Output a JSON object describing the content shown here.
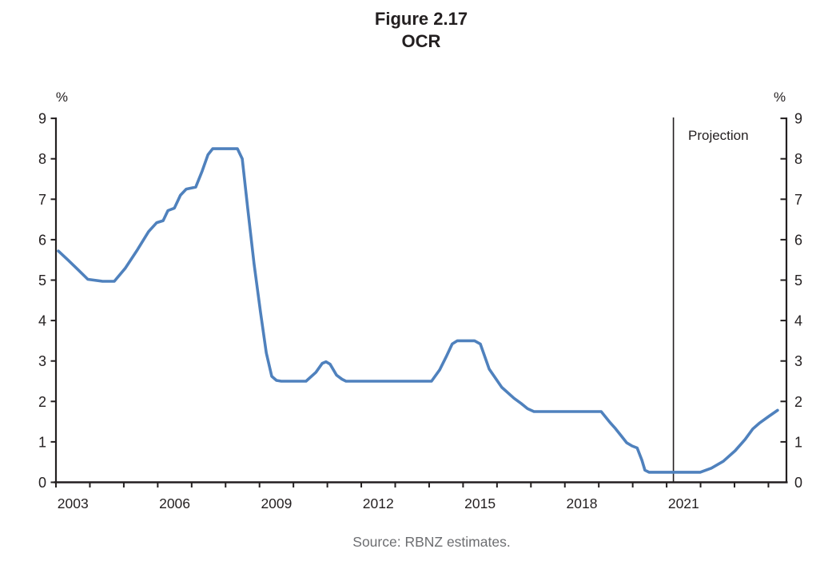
{
  "figure": {
    "title_line1": "Figure 2.17",
    "title_line2": "OCR",
    "unit_label_left": "%",
    "unit_label_right": "%",
    "projection_label": "Projection",
    "source": "Source: RBNZ estimates."
  },
  "chart_data": {
    "type": "line",
    "title": "Figure 2.17 OCR",
    "ylabel": "%",
    "ylim": [
      0,
      9
    ],
    "y_ticks": [
      0,
      1,
      2,
      3,
      4,
      5,
      6,
      7,
      8,
      9
    ],
    "x_start_year": 2003,
    "x_end_year": 2024.55,
    "x_minor_tick_years": [
      2003,
      2004,
      2005,
      2006,
      2007,
      2008,
      2009,
      2010,
      2011,
      2012,
      2013,
      2014,
      2015,
      2016,
      2017,
      2018,
      2019,
      2020,
      2021,
      2022,
      2023,
      2024
    ],
    "x_tick_label_years": [
      2003,
      2006,
      2009,
      2012,
      2015,
      2018,
      2021
    ],
    "grid": false,
    "legend": "none",
    "annotation": {
      "label": "Projection",
      "x": 2021.2
    },
    "colors": {
      "line": "#4f81bd",
      "axis": "#231f20",
      "projection_line": "#231f20",
      "source_text": "#6d6e71"
    },
    "series": [
      {
        "name": "OCR",
        "points": [
          [
            2003.07,
            5.72
          ],
          [
            2003.35,
            5.5
          ],
          [
            2003.66,
            5.25
          ],
          [
            2003.94,
            5.02
          ],
          [
            2004.37,
            4.97
          ],
          [
            2004.72,
            4.97
          ],
          [
            2005.05,
            5.3
          ],
          [
            2005.4,
            5.75
          ],
          [
            2005.73,
            6.2
          ],
          [
            2005.97,
            6.42
          ],
          [
            2006.16,
            6.47
          ],
          [
            2006.3,
            6.72
          ],
          [
            2006.49,
            6.78
          ],
          [
            2006.67,
            7.1
          ],
          [
            2006.84,
            7.25
          ],
          [
            2007.12,
            7.3
          ],
          [
            2007.31,
            7.7
          ],
          [
            2007.48,
            8.1
          ],
          [
            2007.62,
            8.25
          ],
          [
            2008.35,
            8.25
          ],
          [
            2008.49,
            8.0
          ],
          [
            2008.65,
            6.8
          ],
          [
            2008.84,
            5.4
          ],
          [
            2009.03,
            4.2
          ],
          [
            2009.2,
            3.2
          ],
          [
            2009.36,
            2.62
          ],
          [
            2009.5,
            2.52
          ],
          [
            2009.64,
            2.5
          ],
          [
            2010.37,
            2.5
          ],
          [
            2010.66,
            2.72
          ],
          [
            2010.85,
            2.94
          ],
          [
            2010.96,
            2.98
          ],
          [
            2011.08,
            2.92
          ],
          [
            2011.27,
            2.65
          ],
          [
            2011.43,
            2.55
          ],
          [
            2011.55,
            2.5
          ],
          [
            2014.07,
            2.5
          ],
          [
            2014.31,
            2.78
          ],
          [
            2014.5,
            3.1
          ],
          [
            2014.68,
            3.42
          ],
          [
            2014.83,
            3.5
          ],
          [
            2015.34,
            3.5
          ],
          [
            2015.51,
            3.42
          ],
          [
            2015.77,
            2.8
          ],
          [
            2016.14,
            2.35
          ],
          [
            2016.5,
            2.08
          ],
          [
            2016.71,
            1.95
          ],
          [
            2016.9,
            1.82
          ],
          [
            2017.09,
            1.75
          ],
          [
            2019.07,
            1.75
          ],
          [
            2019.33,
            1.48
          ],
          [
            2019.49,
            1.33
          ],
          [
            2019.66,
            1.15
          ],
          [
            2019.82,
            0.98
          ],
          [
            2019.98,
            0.9
          ],
          [
            2020.13,
            0.85
          ],
          [
            2020.27,
            0.55
          ],
          [
            2020.36,
            0.3
          ],
          [
            2020.48,
            0.25
          ],
          [
            2021.99,
            0.25
          ],
          [
            2022.32,
            0.35
          ],
          [
            2022.67,
            0.52
          ],
          [
            2023.02,
            0.78
          ],
          [
            2023.31,
            1.06
          ],
          [
            2023.54,
            1.32
          ],
          [
            2023.73,
            1.46
          ],
          [
            2024.01,
            1.63
          ],
          [
            2024.27,
            1.78
          ]
        ]
      }
    ]
  }
}
